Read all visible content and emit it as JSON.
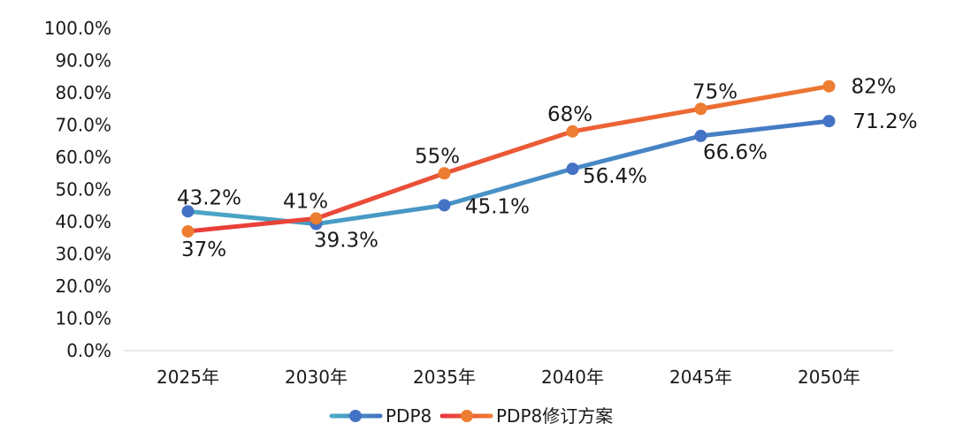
{
  "chart_data": {
    "type": "line",
    "categories": [
      "2025年",
      "2030年",
      "2035年",
      "2040年",
      "2045年",
      "2050年"
    ],
    "ylim": [
      0,
      100
    ],
    "y_ticks": [
      "0.0%",
      "10.0%",
      "20.0%",
      "30.0%",
      "40.0%",
      "50.0%",
      "60.0%",
      "70.0%",
      "80.0%",
      "90.0%",
      "100.0%"
    ],
    "grid": false,
    "legend_position": "bottom",
    "series": [
      {
        "name": "PDP8",
        "values": [
          43.2,
          39.3,
          45.1,
          56.4,
          66.6,
          71.2
        ],
        "labels": [
          "43.2%",
          "39.3%",
          "45.1%",
          "56.4%",
          "66.6%",
          "71.2%"
        ],
        "line_color_start": "#4BACC6",
        "line_color_end": "#4472C4",
        "marker_color": "#4472C4"
      },
      {
        "name": "PDP8修订方案",
        "values": [
          37,
          41,
          55,
          68,
          75,
          82
        ],
        "labels": [
          "37%",
          "41%",
          "55%",
          "68%",
          "75%",
          "82%"
        ],
        "line_color_start": "#E8353A",
        "line_color_end": "#ED7D31",
        "marker_color": "#ED7D31"
      }
    ]
  }
}
